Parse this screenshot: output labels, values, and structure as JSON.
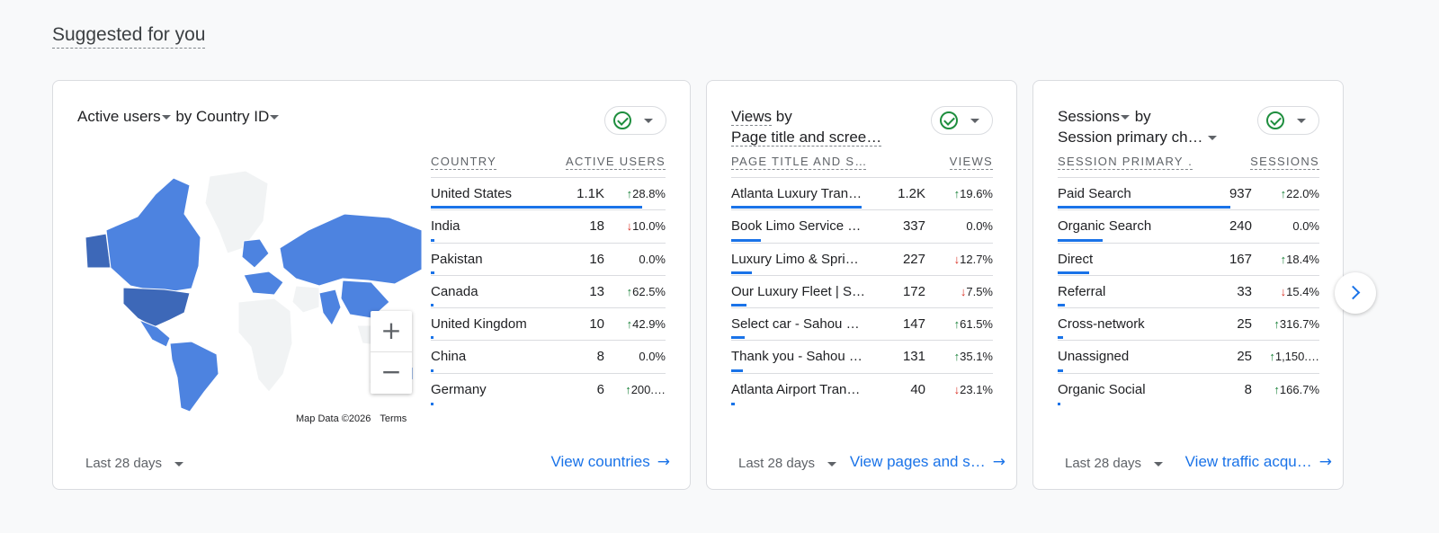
{
  "page": {
    "title": "Suggested for you"
  },
  "cards": [
    {
      "title_metric": "Active users",
      "title_by": "by",
      "title_dim": "Country ID",
      "col1": "COUNTRY",
      "col2": "ACTIVE USERS",
      "rows": [
        {
          "name": "United States",
          "value": "1.1K",
          "change": "28.8%",
          "dir": "up",
          "share": 1.0
        },
        {
          "name": "India",
          "value": "18",
          "change": "10.0%",
          "dir": "down",
          "share": 0.016
        },
        {
          "name": "Pakistan",
          "value": "16",
          "change": "0.0%",
          "dir": "none",
          "share": 0.015
        },
        {
          "name": "Canada",
          "value": "13",
          "change": "62.5%",
          "dir": "up",
          "share": 0.012
        },
        {
          "name": "United Kingdom",
          "value": "10",
          "change": "42.9%",
          "dir": "up",
          "share": 0.009
        },
        {
          "name": "China",
          "value": "8",
          "change": "0.0%",
          "dir": "none",
          "share": 0.007
        },
        {
          "name": "Germany",
          "value": "6",
          "change": "200.…",
          "dir": "up",
          "share": 0.006
        }
      ],
      "map_data": "Map Data ©2026",
      "map_terms": "Terms",
      "range": "Last 28 days",
      "link": "View countries"
    },
    {
      "title_metric": "Views",
      "title_by": "by",
      "title_dim": "Page title and scree…",
      "col1": "PAGE TITLE AND S…",
      "col2": "VIEWS",
      "rows": [
        {
          "name": "Atlanta Luxury Trans…",
          "value": "1.2K",
          "change": "19.6%",
          "dir": "up",
          "share": 1.0
        },
        {
          "name": "Book Limo Service O…",
          "value": "337",
          "change": "0.0%",
          "dir": "none",
          "share": 0.23
        },
        {
          "name": "Luxury Limo & Sprint…",
          "value": "227",
          "change": "12.7%",
          "dir": "down",
          "share": 0.16
        },
        {
          "name": "Our Luxury Fleet | Sp…",
          "value": "172",
          "change": "7.5%",
          "dir": "down",
          "share": 0.12
        },
        {
          "name": "Select car - Sahou Lu…",
          "value": "147",
          "change": "61.5%",
          "dir": "up",
          "share": 0.1
        },
        {
          "name": "Thank you - Sahou L…",
          "value": "131",
          "change": "35.1%",
          "dir": "up",
          "share": 0.09
        },
        {
          "name": "Atlanta Airport Trans…",
          "value": "40",
          "change": "23.1%",
          "dir": "down",
          "share": 0.03
        }
      ],
      "range": "Last 28 days",
      "link": "View pages and s…"
    },
    {
      "title_metric": "Sessions",
      "title_by": "by",
      "title_dim": "Session primary ch…",
      "col1": "SESSION PRIMARY …",
      "col2": "SESSIONS",
      "rows": [
        {
          "name": "Paid Search",
          "value": "937",
          "change": "22.0%",
          "dir": "up",
          "share": 1.0
        },
        {
          "name": "Organic Search",
          "value": "240",
          "change": "0.0%",
          "dir": "none",
          "share": 0.26
        },
        {
          "name": "Direct",
          "value": "167",
          "change": "18.4%",
          "dir": "up",
          "share": 0.18
        },
        {
          "name": "Referral",
          "value": "33",
          "change": "15.4%",
          "dir": "down",
          "share": 0.04
        },
        {
          "name": "Cross-network",
          "value": "25",
          "change": "316.7%",
          "dir": "up",
          "share": 0.03
        },
        {
          "name": "Unassigned",
          "value": "25",
          "change": "1,150.…",
          "dir": "up",
          "share": 0.03
        },
        {
          "name": "Organic Social",
          "value": "8",
          "change": "166.7%",
          "dir": "up",
          "share": 0.01
        }
      ],
      "range": "Last 28 days",
      "link": "View traffic acqu…"
    }
  ],
  "icons": {
    "status": "check-circle-icon",
    "next": "chevron-right-icon",
    "arrow": "arrow-right-icon"
  },
  "colors": {
    "accent": "#1a73e8",
    "map_dark": "#3d68b8",
    "map_mid": "#4d83e0",
    "up": "#188038",
    "down": "#d93025"
  }
}
